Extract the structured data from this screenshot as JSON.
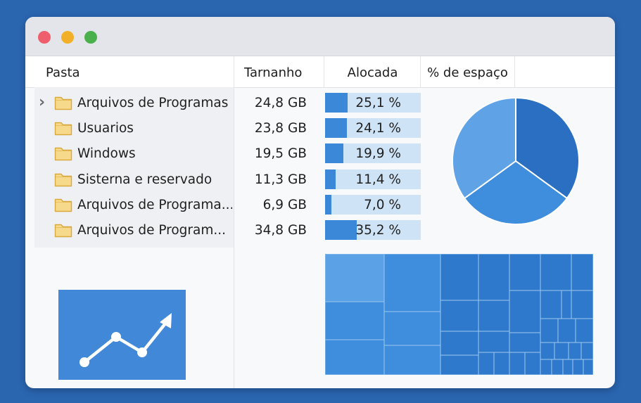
{
  "window": {
    "controls": [
      "close",
      "minimize",
      "maximize"
    ],
    "control_colors": {
      "close": "#ef5e6c",
      "minimize": "#f2b028",
      "maximize": "#49b04b"
    }
  },
  "table": {
    "headers": {
      "name": "Pasta",
      "size": "Tarnanho",
      "allocated": "Alocada",
      "percent": "% de espaço"
    },
    "rows": [
      {
        "name": "Arquivos de Programas",
        "size": "24,8 GB",
        "percent_label": "25,1 %",
        "percent": 25.1,
        "expandable": true
      },
      {
        "name": "Usuarios",
        "size": "23,8 GB",
        "percent_label": "24,1 %",
        "percent": 24.1,
        "expandable": false
      },
      {
        "name": "Windows",
        "size": "19,5 GB",
        "percent_label": "19,9 %",
        "percent": 19.9,
        "expandable": false
      },
      {
        "name": "Sisterna e reservado",
        "size": "11,3 GB",
        "percent_label": "11,4 %",
        "percent": 11.4,
        "expandable": false
      },
      {
        "name": "Arquivos de Programa...",
        "size": "6,9 GB",
        "percent_label": "7,0 %",
        "percent": 7.0,
        "expandable": false
      },
      {
        "name": "Arquivos de Program...",
        "size": "34,8 GB",
        "percent_label": "35,2 %",
        "percent": 35.2,
        "expandable": false
      }
    ]
  },
  "icons": {
    "expander": "chevron-right-icon",
    "folder": "folder-icon",
    "trend": "trend-up-icon"
  },
  "colors": {
    "accent": "#3c88d8",
    "bar_track": "#cfe3f6",
    "folder_fill": "#f7d98c",
    "folder_stroke": "#d9a93e",
    "pie": [
      "#2a6fc1",
      "#3f8ddd",
      "#5fa3e6"
    ],
    "treemap": [
      "#5aa1e6",
      "#3f8ddd",
      "#2f79cc"
    ]
  },
  "pie_chart": {
    "slices": [
      0.35,
      0.3,
      0.35
    ]
  }
}
